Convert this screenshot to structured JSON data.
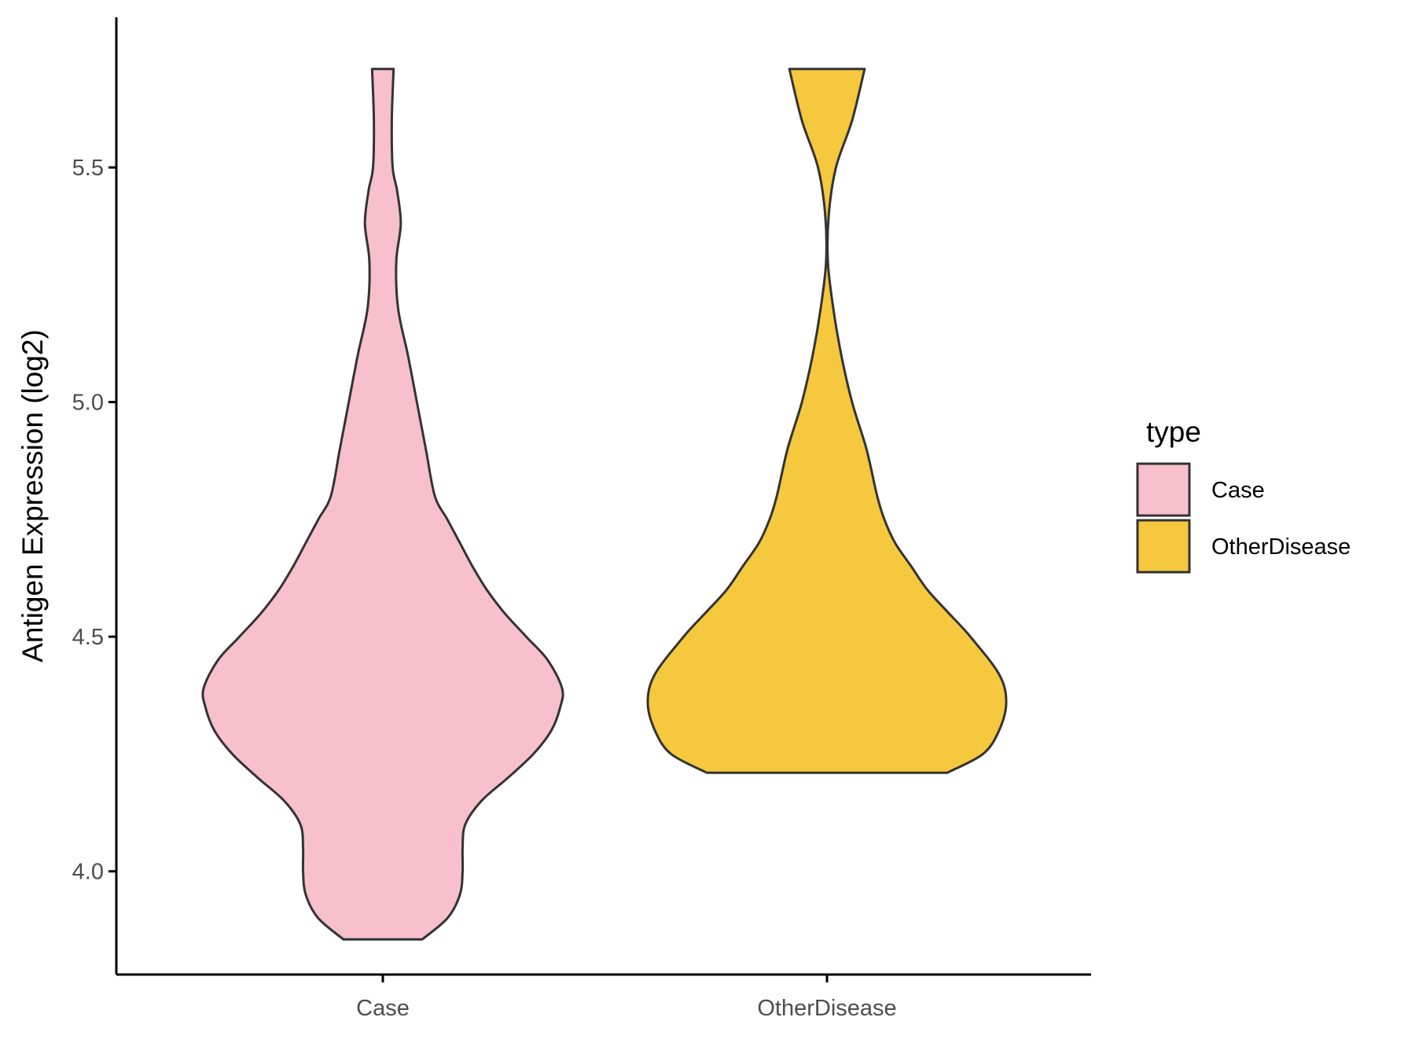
{
  "chart_data": {
    "type": "violin",
    "title": "",
    "xlabel": "",
    "ylabel": "Antigen Expression (log2)",
    "ylim": [
      3.78,
      5.82
    ],
    "yticks": [
      "4.0",
      "4.5",
      "5.0",
      "5.5"
    ],
    "categories": [
      "Case",
      "OtherDisease"
    ],
    "legend": {
      "title": "type",
      "position": "right",
      "entries": [
        "Case",
        "OtherDisease"
      ]
    },
    "grid": false,
    "series": [
      {
        "name": "Case",
        "color": "#F7C0CC",
        "min": 3.855,
        "max": 5.71,
        "density_profile": [
          [
            3.855,
            0.22
          ],
          [
            3.9,
            0.36
          ],
          [
            3.95,
            0.43
          ],
          [
            4.0,
            0.445
          ],
          [
            4.05,
            0.445
          ],
          [
            4.1,
            0.46
          ],
          [
            4.15,
            0.55
          ],
          [
            4.2,
            0.7
          ],
          [
            4.25,
            0.84
          ],
          [
            4.3,
            0.94
          ],
          [
            4.35,
            0.99
          ],
          [
            4.39,
            1.0
          ],
          [
            4.45,
            0.92
          ],
          [
            4.5,
            0.8
          ],
          [
            4.55,
            0.68
          ],
          [
            4.6,
            0.58
          ],
          [
            4.65,
            0.5
          ],
          [
            4.7,
            0.43
          ],
          [
            4.75,
            0.36
          ],
          [
            4.8,
            0.29
          ],
          [
            4.9,
            0.24
          ],
          [
            5.0,
            0.19
          ],
          [
            5.1,
            0.14
          ],
          [
            5.2,
            0.085
          ],
          [
            5.3,
            0.075
          ],
          [
            5.38,
            0.1
          ],
          [
            5.45,
            0.08
          ],
          [
            5.5,
            0.055
          ],
          [
            5.6,
            0.05
          ],
          [
            5.71,
            0.06
          ]
        ]
      },
      {
        "name": "OtherDisease",
        "color": "#F5C83E",
        "min": 4.21,
        "max": 5.71,
        "density_profile": [
          [
            4.21,
            0.67
          ],
          [
            4.25,
            0.87
          ],
          [
            4.3,
            0.96
          ],
          [
            4.36,
            1.0
          ],
          [
            4.42,
            0.96
          ],
          [
            4.5,
            0.8
          ],
          [
            4.55,
            0.68
          ],
          [
            4.6,
            0.56
          ],
          [
            4.65,
            0.47
          ],
          [
            4.7,
            0.38
          ],
          [
            4.75,
            0.32
          ],
          [
            4.8,
            0.28
          ],
          [
            4.9,
            0.22
          ],
          [
            5.0,
            0.14
          ],
          [
            5.1,
            0.08
          ],
          [
            5.2,
            0.035
          ],
          [
            5.3,
            0.005
          ],
          [
            5.4,
            0.01
          ],
          [
            5.5,
            0.05
          ],
          [
            5.6,
            0.14
          ],
          [
            5.71,
            0.21
          ]
        ]
      }
    ]
  }
}
